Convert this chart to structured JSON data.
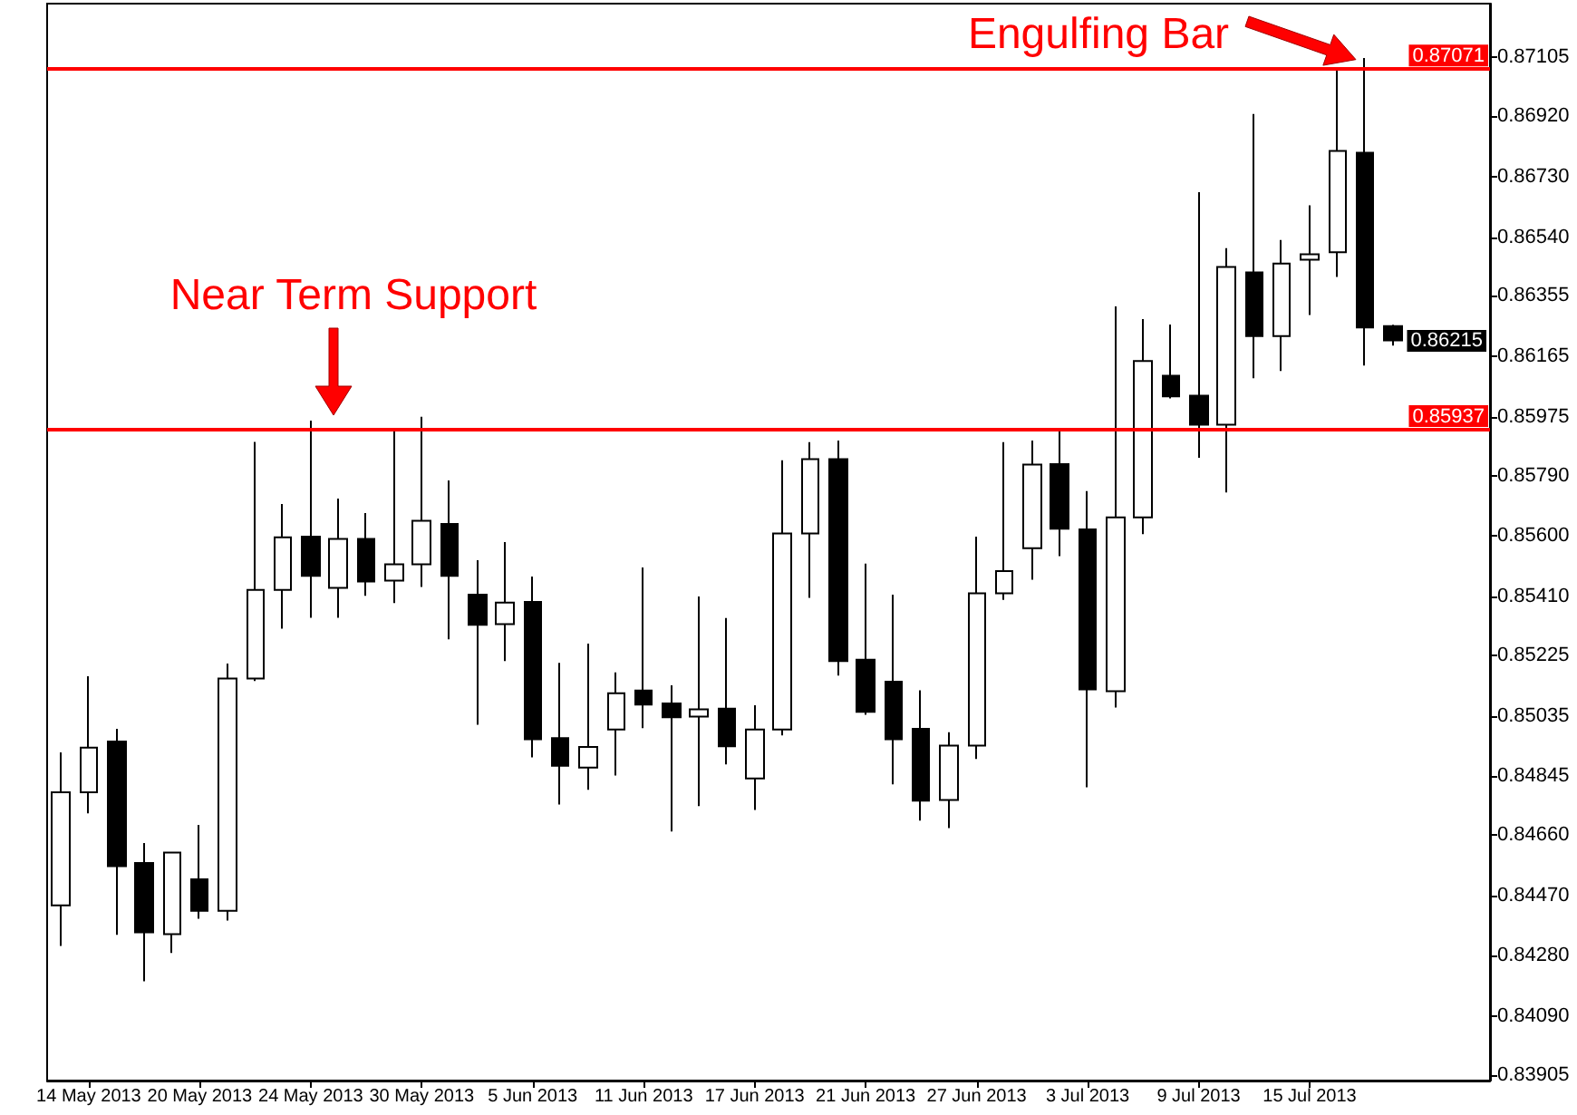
{
  "chart_data": {
    "type": "candlestick",
    "categories": [
      null,
      "14 May 2013",
      null,
      null,
      null,
      "20 May 2013",
      null,
      null,
      null,
      "24 May 2013",
      null,
      null,
      null,
      "30 May 2013",
      null,
      null,
      null,
      "5 Jun 2013",
      null,
      null,
      null,
      "11 Jun 2013",
      null,
      null,
      null,
      "17 Jun 2013",
      null,
      null,
      null,
      "21 Jun 2013",
      null,
      null,
      null,
      "27 Jun 2013",
      null,
      null,
      null,
      "3 Jul 2013",
      null,
      null,
      null,
      "9 Jul 2013",
      null,
      null,
      null,
      "15 Jul 2013",
      null,
      null,
      null
    ],
    "ohlc": [
      [
        0.84439,
        0.8492,
        0.84311,
        0.84794
      ],
      [
        0.84794,
        0.85159,
        0.84728,
        0.84935
      ],
      [
        0.84954,
        0.84994,
        0.84346,
        0.84562
      ],
      [
        0.84572,
        0.84635,
        0.842,
        0.84354
      ],
      [
        0.84348,
        0.84608,
        0.84289,
        0.84605
      ],
      [
        0.84521,
        0.84692,
        0.84397,
        0.84422
      ],
      [
        0.84422,
        0.85199,
        0.84391,
        0.85152
      ],
      [
        0.85152,
        0.85896,
        0.85144,
        0.85431
      ],
      [
        0.85431,
        0.85701,
        0.85309,
        0.85596
      ],
      [
        0.85598,
        0.85963,
        0.85343,
        0.85475
      ],
      [
        0.85437,
        0.85718,
        0.85343,
        0.85591
      ],
      [
        0.85591,
        0.85672,
        0.85412,
        0.85457
      ],
      [
        0.8546,
        0.8594,
        0.85389,
        0.85511
      ],
      [
        0.85511,
        0.85975,
        0.8544,
        0.85648
      ],
      [
        0.85638,
        0.85775,
        0.85275,
        0.85475
      ],
      [
        0.85416,
        0.85524,
        0.85007,
        0.85321
      ],
      [
        0.85323,
        0.85581,
        0.85207,
        0.85391
      ],
      [
        0.85393,
        0.85473,
        0.84904,
        0.84961
      ],
      [
        0.84965,
        0.85201,
        0.84756,
        0.84878
      ],
      [
        0.84872,
        0.85262,
        0.84802,
        0.84937
      ],
      [
        0.84992,
        0.85171,
        0.84847,
        0.85106
      ],
      [
        0.85114,
        0.85501,
        0.84996,
        0.8507
      ],
      [
        0.85074,
        0.85131,
        0.84671,
        0.8503
      ],
      [
        0.85032,
        0.8541,
        0.84751,
        0.85055
      ],
      [
        0.85057,
        0.85342,
        0.84882,
        0.84939
      ],
      [
        0.84838,
        0.85068,
        0.84739,
        0.84992
      ],
      [
        0.84992,
        0.85838,
        0.84973,
        0.85608
      ],
      [
        0.85608,
        0.85895,
        0.85406,
        0.85842
      ],
      [
        0.85842,
        0.859,
        0.85161,
        0.85207
      ],
      [
        0.85211,
        0.85513,
        0.85038,
        0.85047
      ],
      [
        0.85142,
        0.85416,
        0.84819,
        0.84961
      ],
      [
        0.84994,
        0.85115,
        0.84705,
        0.84768
      ],
      [
        0.8477,
        0.84983,
        0.84682,
        0.84941
      ],
      [
        0.84941,
        0.85598,
        0.84899,
        0.8542
      ],
      [
        0.8542,
        0.85895,
        0.85399,
        0.8549
      ],
      [
        0.85562,
        0.859,
        0.85463,
        0.85825
      ],
      [
        0.85826,
        0.85933,
        0.85537,
        0.85623
      ],
      [
        0.85621,
        0.85741,
        0.8481,
        0.85118
      ],
      [
        0.85112,
        0.86322,
        0.85061,
        0.85659
      ],
      [
        0.85659,
        0.86282,
        0.85606,
        0.8615
      ],
      [
        0.86104,
        0.86265,
        0.86033,
        0.86039
      ],
      [
        0.86041,
        0.86681,
        0.85846,
        0.8595
      ],
      [
        0.8595,
        0.86505,
        0.85737,
        0.86446
      ],
      [
        0.86429,
        0.86927,
        0.86096,
        0.86229
      ],
      [
        0.86229,
        0.86531,
        0.86119,
        0.86457
      ],
      [
        0.86469,
        0.8664,
        0.86295,
        0.86486
      ],
      [
        0.86492,
        0.87071,
        0.86415,
        0.86811
      ],
      [
        0.86805,
        0.87103,
        0.86136,
        0.86256
      ],
      [
        0.8626,
        0.86264,
        0.86199,
        0.86215
      ]
    ],
    "color": "#000000",
    "ylim": [
      0.83888,
      0.87274
    ],
    "yticks": [
      0.83905,
      {
        "value": 0.8409,
        "label": "0.84090"
      },
      {
        "value": 0.8428,
        "label": "0.84280"
      },
      {
        "value": 0.8447,
        "label": "0.84470"
      },
      {
        "value": 0.8466,
        "label": "0.84660"
      },
      0.84845,
      0.85035,
      0.85225,
      {
        "value": 0.8541,
        "label": "0.85410"
      },
      {
        "value": 0.856,
        "label": "0.85600"
      },
      {
        "value": 0.8579,
        "label": "0.85790"
      },
      0.85975,
      0.86165,
      0.86355,
      {
        "value": 0.8654,
        "label": "0.86540"
      },
      {
        "value": 0.8673,
        "label": "0.86730"
      },
      {
        "value": 0.8692,
        "label": "0.86920"
      },
      0.87105
    ],
    "ref_lines": [
      {
        "axis": "y",
        "value": 0.87071,
        "label": "0.87071",
        "color": "#ff0000"
      },
      {
        "axis": "y",
        "value": 0.85937,
        "label": "0.85937",
        "color": "#ff0000"
      }
    ],
    "annotations": [
      "Engulfing Bar",
      "Near Term Support",
      "0.86215"
    ]
  }
}
